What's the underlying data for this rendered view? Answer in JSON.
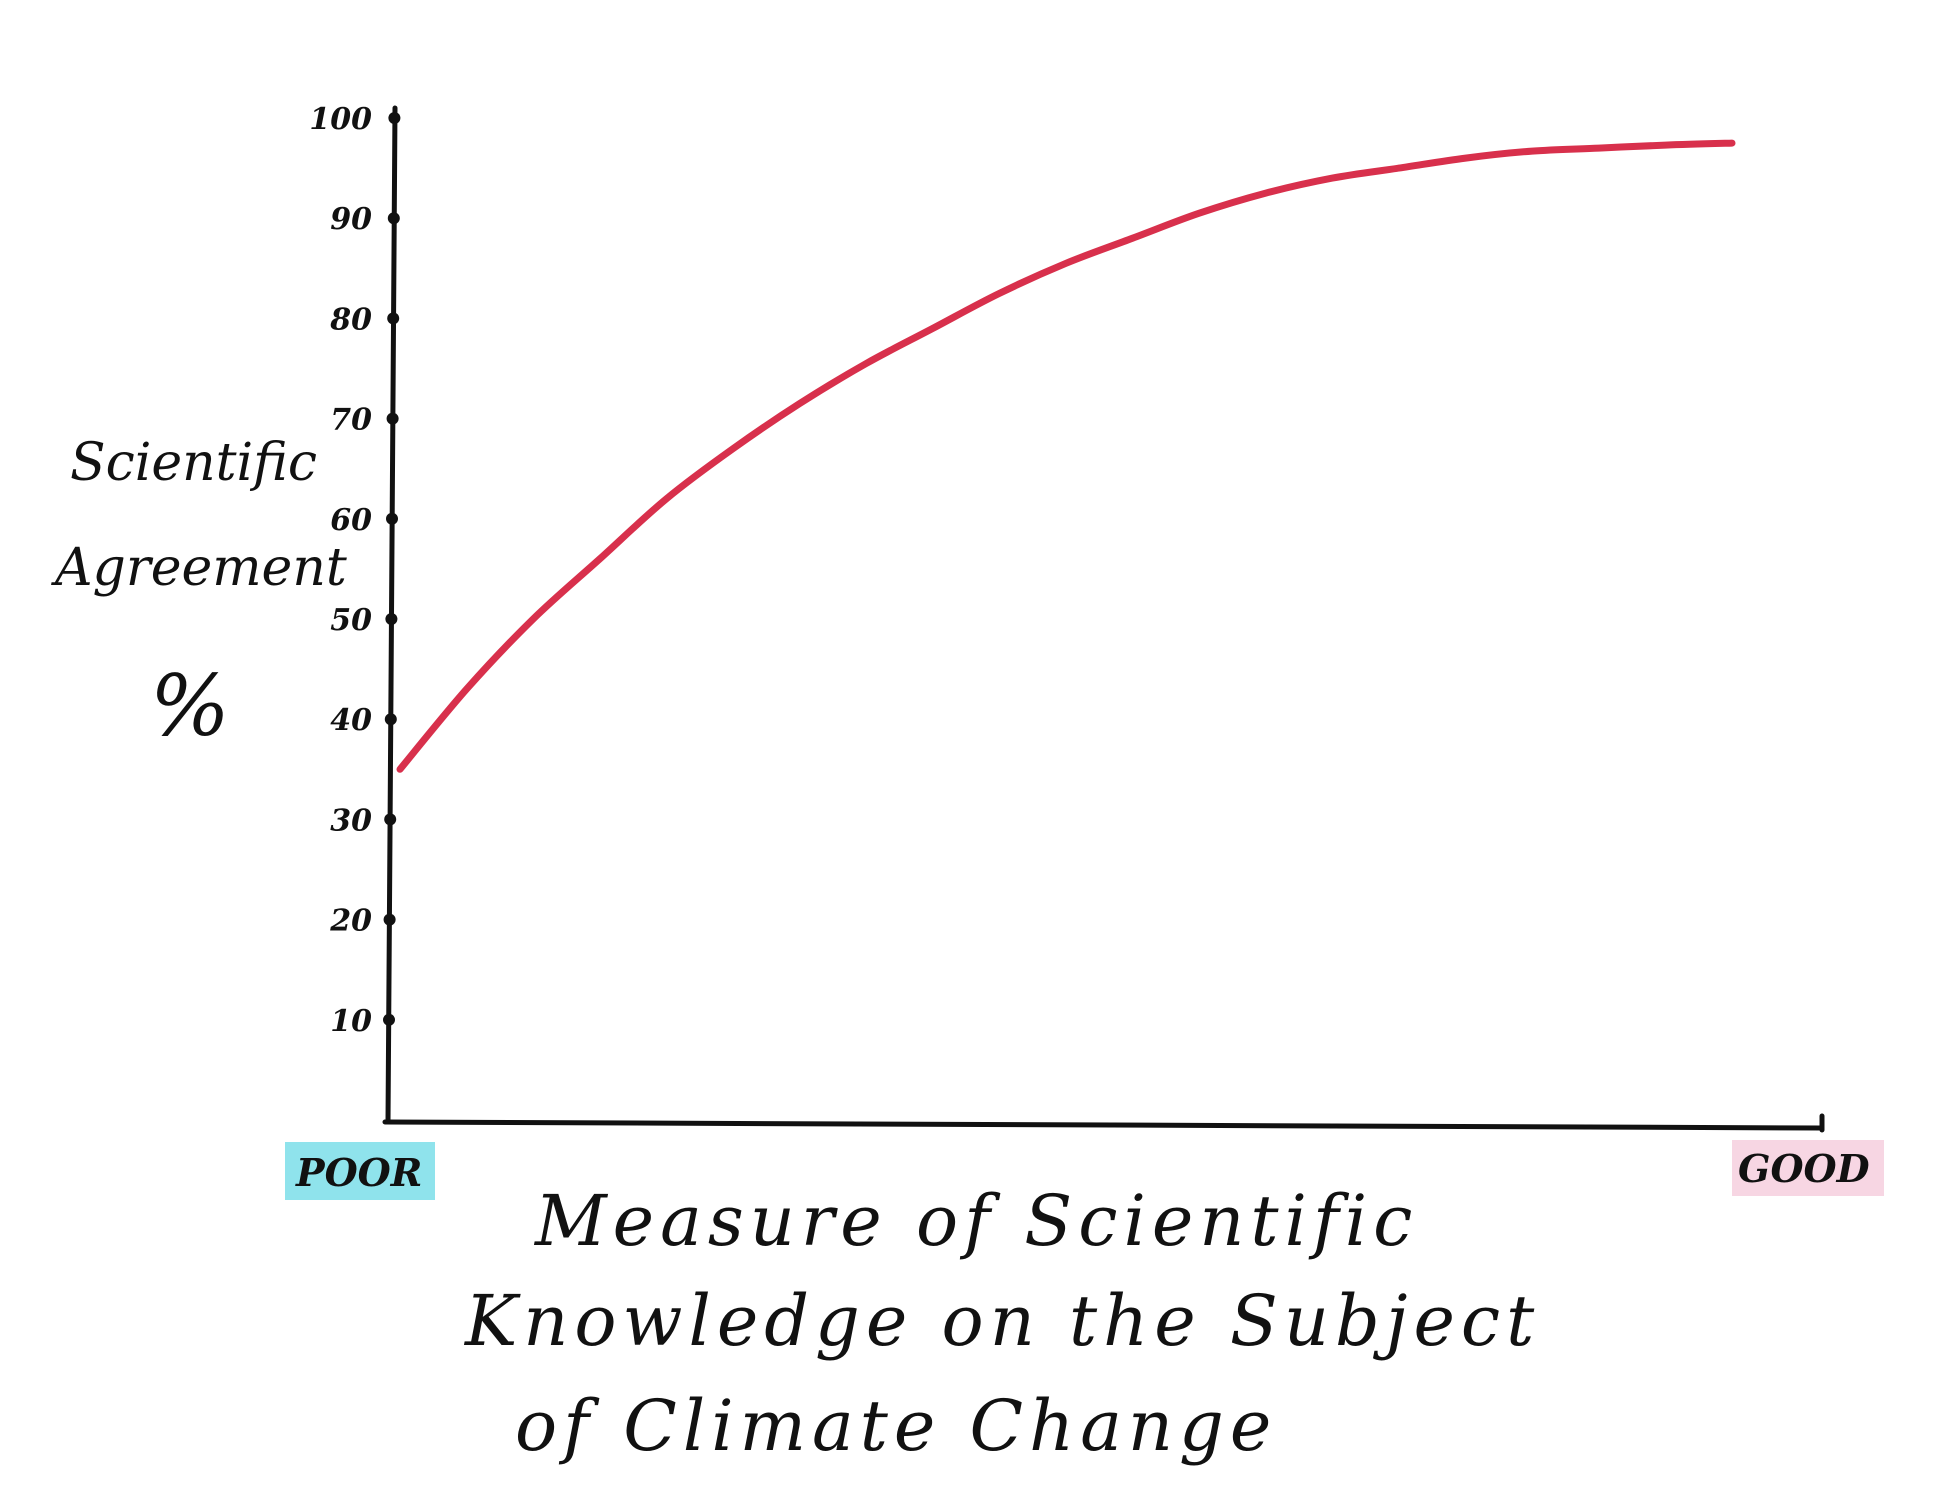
{
  "chart_data": {
    "type": "line",
    "title": "",
    "ylabel_lines": [
      "Scientific",
      "Agreement"
    ],
    "ylabel_unit": "%",
    "xlabel_lines": [
      "Measure of Scientific",
      "Knowledge on the Subject",
      "of Climate Change"
    ],
    "ylim": [
      0,
      100
    ],
    "yticks": [
      10,
      20,
      30,
      40,
      50,
      60,
      70,
      80,
      90,
      100
    ],
    "xlim": [
      0,
      1
    ],
    "x_end_labels": {
      "low": "POOR",
      "high": "GOOD"
    },
    "end_label_colors": {
      "low": "#8fe3ec",
      "high": "#f7d6e3"
    },
    "series": [
      {
        "color": "#d8304c",
        "x": [
          0.0,
          0.05,
          0.1,
          0.15,
          0.2,
          0.25,
          0.3,
          0.35,
          0.4,
          0.45,
          0.5,
          0.55,
          0.6,
          0.65,
          0.7,
          0.75,
          0.8,
          0.85,
          0.9,
          0.95,
          1.0
        ],
        "y": [
          35,
          43,
          50,
          56,
          62,
          67,
          71.5,
          75.5,
          79,
          82.5,
          85.5,
          88,
          90.5,
          92.5,
          94,
          95,
          96,
          96.7,
          97,
          97.3,
          97.5
        ]
      }
    ],
    "grid": false,
    "legend": "none"
  }
}
